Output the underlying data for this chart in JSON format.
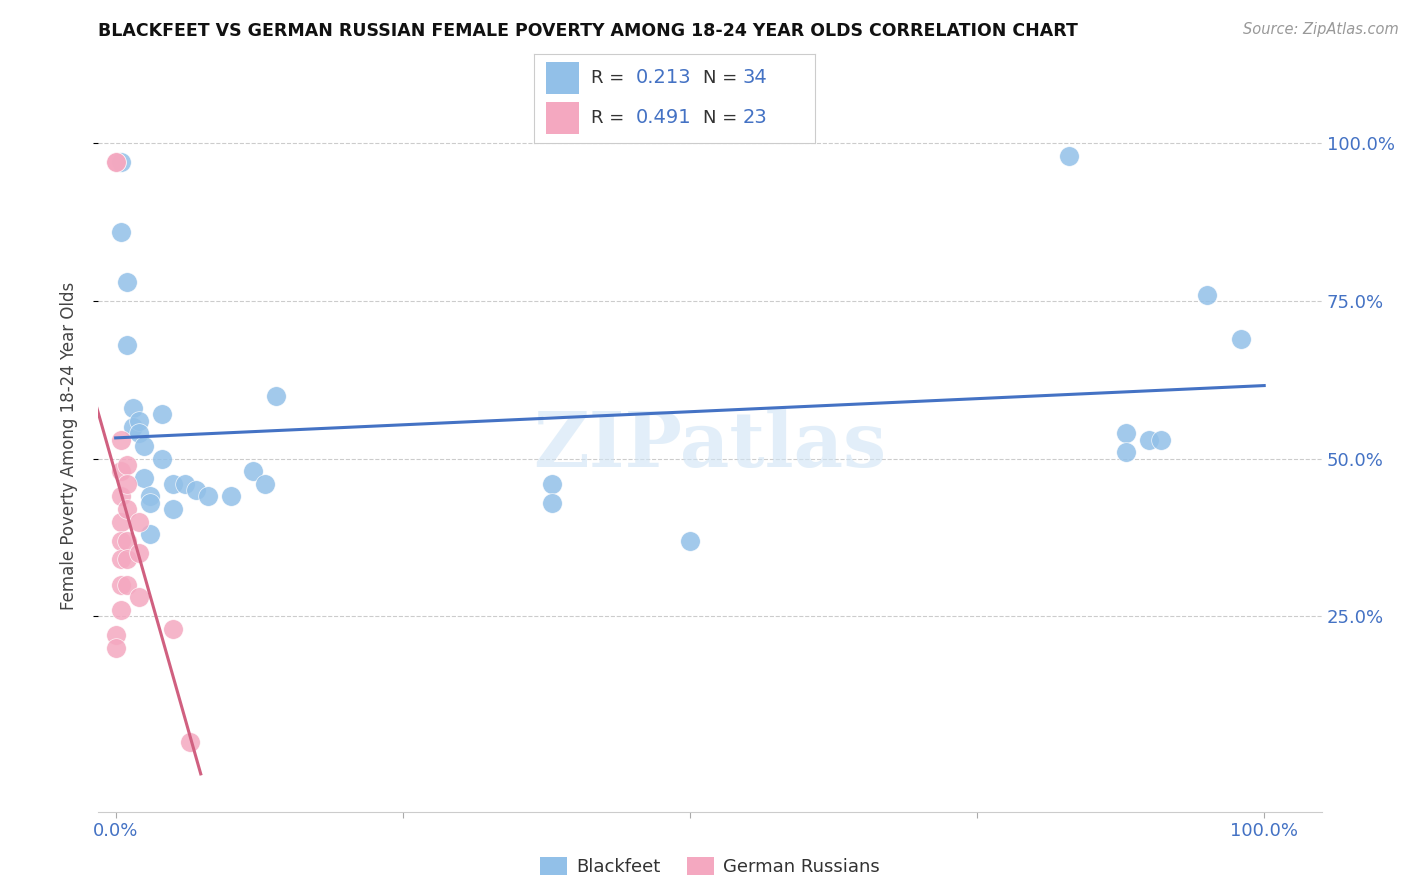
{
  "title": "BLACKFEET VS GERMAN RUSSIAN FEMALE POVERTY AMONG 18-24 YEAR OLDS CORRELATION CHART",
  "source": "Source: ZipAtlas.com",
  "ylabel": "Female Poverty Among 18-24 Year Olds",
  "xlim": [
    -0.015,
    1.05
  ],
  "ylim": [
    -0.06,
    1.1
  ],
  "xticks": [
    0.0,
    0.25,
    0.5,
    0.75,
    1.0
  ],
  "yticks": [
    0.25,
    0.5,
    0.75,
    1.0
  ],
  "ytick_labels": [
    "25.0%",
    "50.0%",
    "75.0%",
    "100.0%"
  ],
  "blackfeet_color": "#92C0E8",
  "german_color": "#F4A8C0",
  "trend_blue": "#4472C4",
  "trend_pink": "#D06080",
  "watermark": "ZIPatlas",
  "legend_R_blue": "0.213",
  "legend_N_blue": "34",
  "legend_R_pink": "0.491",
  "legend_N_pink": "23",
  "blackfeet_x": [
    0.005,
    0.005,
    0.01,
    0.01,
    0.015,
    0.015,
    0.02,
    0.02,
    0.025,
    0.025,
    0.03,
    0.03,
    0.03,
    0.04,
    0.04,
    0.05,
    0.05,
    0.06,
    0.07,
    0.08,
    0.1,
    0.12,
    0.13,
    0.14,
    0.38,
    0.38,
    0.5,
    0.83,
    0.88,
    0.88,
    0.9,
    0.91,
    0.95,
    0.98
  ],
  "blackfeet_y": [
    0.86,
    0.97,
    0.78,
    0.68,
    0.58,
    0.55,
    0.56,
    0.54,
    0.52,
    0.47,
    0.44,
    0.43,
    0.38,
    0.57,
    0.5,
    0.46,
    0.42,
    0.46,
    0.45,
    0.44,
    0.44,
    0.48,
    0.46,
    0.6,
    0.46,
    0.43,
    0.37,
    0.98,
    0.54,
    0.51,
    0.53,
    0.53,
    0.76,
    0.69
  ],
  "german_x": [
    0.0,
    0.0,
    0.0,
    0.0,
    0.005,
    0.005,
    0.005,
    0.005,
    0.005,
    0.005,
    0.005,
    0.005,
    0.01,
    0.01,
    0.01,
    0.01,
    0.01,
    0.01,
    0.02,
    0.02,
    0.02,
    0.05,
    0.065
  ],
  "german_y": [
    0.97,
    0.97,
    0.22,
    0.2,
    0.53,
    0.48,
    0.44,
    0.4,
    0.37,
    0.34,
    0.3,
    0.26,
    0.49,
    0.46,
    0.42,
    0.37,
    0.34,
    0.3,
    0.4,
    0.35,
    0.28,
    0.23,
    0.05
  ]
}
